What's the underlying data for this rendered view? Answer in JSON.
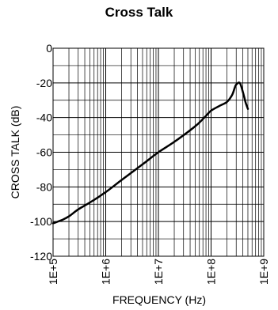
{
  "chart_data": {
    "type": "line",
    "title": "Cross Talk",
    "xlabel": "FREQUENCY (Hz)",
    "ylabel": "CROSS TALK (dB)",
    "x_scale": "log",
    "xlim": [
      100000,
      1000000000
    ],
    "ylim": [
      -120,
      0
    ],
    "x_ticks": [
      100000,
      1000000,
      10000000,
      100000000,
      1000000000
    ],
    "x_tick_labels": [
      "1E+5",
      "1E+6",
      "1E+7",
      "1E+8",
      "1E+9"
    ],
    "y_ticks": [
      0,
      -20,
      -40,
      -60,
      -80,
      -100,
      -120
    ],
    "y_tick_labels": [
      "0",
      "-20",
      "-40",
      "-60",
      "-80",
      "-100",
      "-120"
    ],
    "grid": true,
    "line_color": "#000000",
    "series": [
      {
        "x": [
          100000,
          150000,
          200000,
          300000,
          500000,
          1000000,
          2000000,
          5000000,
          10000000,
          20000000,
          50000000,
          80000000,
          100000000,
          150000000,
          200000000,
          250000000,
          280000000,
          300000000,
          350000000,
          400000000,
          450000000,
          500000000
        ],
        "y": [
          -101,
          -99,
          -97,
          -93,
          -89,
          -83,
          -76,
          -67,
          -60,
          -54,
          -45,
          -39,
          -36,
          -33,
          -31,
          -27,
          -23,
          -21,
          -20,
          -25,
          -31,
          -35
        ]
      }
    ]
  }
}
